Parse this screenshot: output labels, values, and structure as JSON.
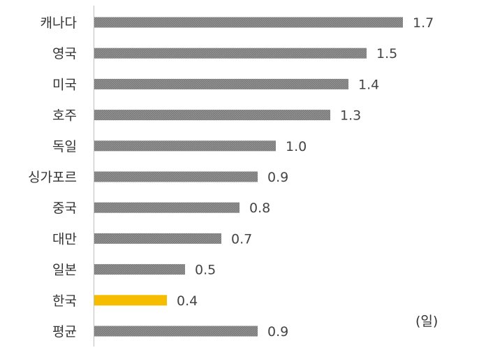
{
  "chart_data": {
    "type": "bar",
    "orientation": "horizontal",
    "categories": [
      "캐나다",
      "영국",
      "미국",
      "호주",
      "독일",
      "싱가포르",
      "중국",
      "대만",
      "일본",
      "한국",
      "평균"
    ],
    "values": [
      1.7,
      1.5,
      1.4,
      1.3,
      1.0,
      0.9,
      0.8,
      0.7,
      0.5,
      0.4,
      0.9
    ],
    "value_labels": [
      "1.7",
      "1.5",
      "1.4",
      "1.3",
      "1.0",
      "0.9",
      "0.8",
      "0.7",
      "0.5",
      "0.4",
      "0.9"
    ],
    "highlight_category": "한국",
    "unit": "(일)",
    "xlim": [
      0,
      1.7
    ],
    "grid": false,
    "legend": "none",
    "colors": {
      "bar": "#808080",
      "highlight": "#F5BC00",
      "axis": "#BFBFBF"
    }
  }
}
